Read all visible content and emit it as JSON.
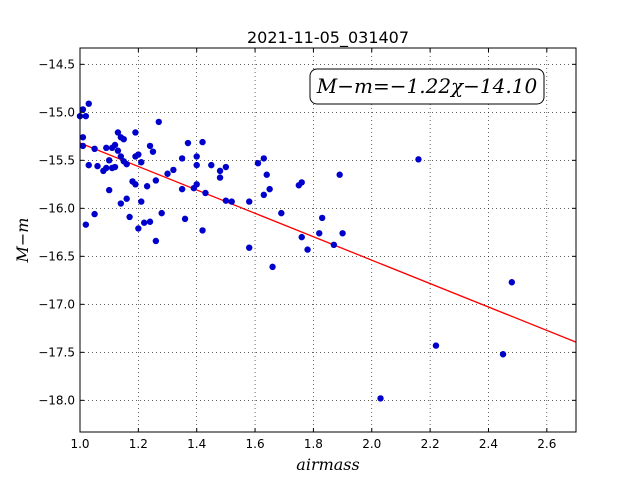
{
  "chart_data": {
    "type": "scatter",
    "title": "2021-11-05_031407",
    "xlabel": "airmass",
    "ylabel": "M−m",
    "xlim": [
      1.0,
      2.7
    ],
    "ylim": [
      -18.33,
      -14.33
    ],
    "x_ticks": [
      1.0,
      1.2,
      1.4,
      1.6,
      1.8,
      2.0,
      2.2,
      2.4,
      2.6
    ],
    "x_tick_labels": [
      "1.0",
      "1.2",
      "1.4",
      "1.6",
      "1.8",
      "2.0",
      "2.2",
      "2.4",
      "2.6"
    ],
    "y_ticks": [
      -14.5,
      -15.0,
      -15.5,
      -16.0,
      -16.5,
      -17.0,
      -17.5,
      -18.0
    ],
    "y_tick_labels": [
      "−14.5",
      "−15.0",
      "−15.5",
      "−16.0",
      "−16.5",
      "−17.0",
      "−17.5",
      "−18.0"
    ],
    "grid": true,
    "annotation": "M−m=−1.22χ−14.10",
    "fit_line": {
      "slope": -1.22,
      "intercept": -14.1,
      "color": "#ff0000"
    },
    "point_color": "#0000cc",
    "points": [
      [
        1.0,
        -15.04
      ],
      [
        1.01,
        -14.97
      ],
      [
        1.01,
        -15.26
      ],
      [
        1.01,
        -15.35
      ],
      [
        1.02,
        -15.04
      ],
      [
        1.02,
        -16.17
      ],
      [
        1.03,
        -14.91
      ],
      [
        1.03,
        -15.55
      ],
      [
        1.05,
        -15.38
      ],
      [
        1.05,
        -16.06
      ],
      [
        1.06,
        -15.56
      ],
      [
        1.08,
        -15.61
      ],
      [
        1.09,
        -15.58
      ],
      [
        1.09,
        -15.37
      ],
      [
        1.1,
        -15.5
      ],
      [
        1.1,
        -15.81
      ],
      [
        1.11,
        -15.37
      ],
      [
        1.11,
        -15.58
      ],
      [
        1.12,
        -15.34
      ],
      [
        1.12,
        -15.57
      ],
      [
        1.13,
        -15.21
      ],
      [
        1.13,
        -15.4
      ],
      [
        1.14,
        -15.26
      ],
      [
        1.14,
        -15.46
      ],
      [
        1.14,
        -15.95
      ],
      [
        1.15,
        -15.28
      ],
      [
        1.15,
        -15.51
      ],
      [
        1.16,
        -15.9
      ],
      [
        1.16,
        -15.54
      ],
      [
        1.17,
        -16.09
      ],
      [
        1.18,
        -15.72
      ],
      [
        1.19,
        -15.75
      ],
      [
        1.19,
        -15.46
      ],
      [
        1.19,
        -15.21
      ],
      [
        1.2,
        -15.44
      ],
      [
        1.2,
        -16.21
      ],
      [
        1.21,
        -15.93
      ],
      [
        1.21,
        -15.52
      ],
      [
        1.22,
        -16.15
      ],
      [
        1.23,
        -15.77
      ],
      [
        1.24,
        -16.14
      ],
      [
        1.24,
        -15.35
      ],
      [
        1.25,
        -15.41
      ],
      [
        1.26,
        -15.71
      ],
      [
        1.26,
        -16.34
      ],
      [
        1.27,
        -15.1
      ],
      [
        1.28,
        -16.05
      ],
      [
        1.3,
        -15.64
      ],
      [
        1.32,
        -15.6
      ],
      [
        1.35,
        -15.48
      ],
      [
        1.35,
        -15.8
      ],
      [
        1.36,
        -16.11
      ],
      [
        1.37,
        -15.32
      ],
      [
        1.39,
        -15.79
      ],
      [
        1.4,
        -15.55
      ],
      [
        1.4,
        -15.46
      ],
      [
        1.4,
        -15.75
      ],
      [
        1.42,
        -15.31
      ],
      [
        1.42,
        -16.23
      ],
      [
        1.43,
        -15.84
      ],
      [
        1.45,
        -15.55
      ],
      [
        1.48,
        -15.61
      ],
      [
        1.48,
        -15.68
      ],
      [
        1.5,
        -15.92
      ],
      [
        1.5,
        -15.57
      ],
      [
        1.52,
        -15.93
      ],
      [
        1.58,
        -16.41
      ],
      [
        1.58,
        -15.93
      ],
      [
        1.61,
        -15.53
      ],
      [
        1.63,
        -15.86
      ],
      [
        1.63,
        -15.48
      ],
      [
        1.64,
        -15.65
      ],
      [
        1.65,
        -15.8
      ],
      [
        1.66,
        -16.61
      ],
      [
        1.69,
        -16.05
      ],
      [
        1.75,
        -15.76
      ],
      [
        1.76,
        -15.73
      ],
      [
        1.76,
        -16.3
      ],
      [
        1.78,
        -16.43
      ],
      [
        1.82,
        -16.26
      ],
      [
        1.83,
        -16.1
      ],
      [
        1.87,
        -16.38
      ],
      [
        1.89,
        -15.65
      ],
      [
        1.9,
        -16.26
      ],
      [
        2.03,
        -17.98
      ],
      [
        2.16,
        -15.49
      ],
      [
        2.22,
        -17.43
      ],
      [
        2.45,
        -17.52
      ],
      [
        2.48,
        -16.77
      ]
    ]
  }
}
